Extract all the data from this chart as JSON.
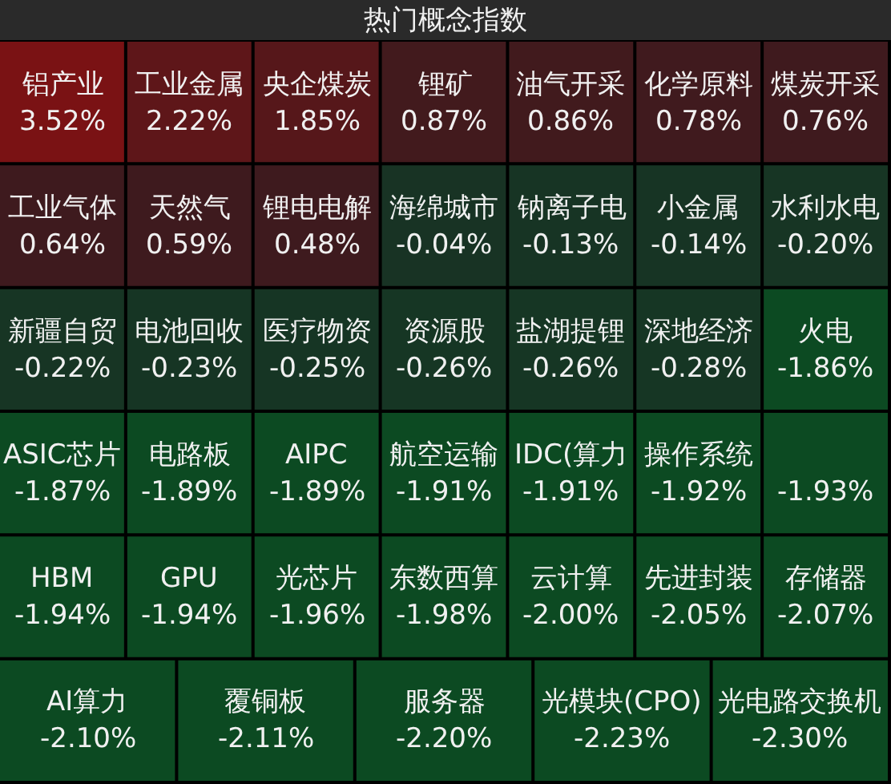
{
  "chart_data": {
    "type": "other",
    "title": "热门概念指数",
    "categories": [
      "铝产业",
      "工业金属",
      "央企煤炭",
      "锂矿",
      "油气开采",
      "化学原料",
      "煤炭开采",
      "工业气体",
      "天然气",
      "锂电电解",
      "海绵城市",
      "钠离子电",
      "小金属",
      "水利水电",
      "新疆自贸",
      "电池回收",
      "医疗物资",
      "资源股",
      "盐湖提锂",
      "深地经济",
      "火电",
      "ASIC芯片",
      "电路板",
      "AIPC",
      "航空运输",
      "IDC(算力",
      "操作系统",
      null,
      "HBM",
      "GPU",
      "光芯片",
      "东数西算",
      "云计算",
      "先进封装",
      "存储器",
      "AI算力",
      "覆铜板",
      "服务器",
      "光模块(CPO)",
      "光电路交换机"
    ],
    "values": [
      3.52,
      2.22,
      1.85,
      0.87,
      0.86,
      0.78,
      0.76,
      0.64,
      0.59,
      0.48,
      -0.04,
      -0.13,
      -0.14,
      -0.2,
      -0.22,
      -0.23,
      -0.25,
      -0.26,
      -0.26,
      -0.28,
      -1.86,
      -1.87,
      -1.89,
      -1.89,
      -1.91,
      -1.91,
      -1.92,
      -1.93,
      -1.94,
      -1.94,
      -1.96,
      -1.98,
      -2.0,
      -2.05,
      -2.07,
      -2.1,
      -2.11,
      -2.2,
      -2.23,
      -2.3
    ],
    "value_labels": [
      "3.52%",
      "2.22%",
      "1.85%",
      "0.87%",
      "0.86%",
      "0.78%",
      "0.76%",
      "0.64%",
      "0.59%",
      "0.48%",
      "-0.04%",
      "-0.13%",
      "-0.14%",
      "-0.20%",
      "-0.22%",
      "-0.23%",
      "-0.25%",
      "-0.26%",
      "-0.26%",
      "-0.28%",
      "-1.86%",
      "-1.87%",
      "-1.89%",
      "-1.89%",
      "-1.91%",
      "-1.91%",
      "-1.92%",
      "-1.93%",
      "-1.94%",
      "-1.94%",
      "-1.96%",
      "-1.98%",
      "-2.00%",
      "-2.05%",
      "-2.07%",
      "-2.10%",
      "-2.11%",
      "-2.20%",
      "-2.23%",
      "-2.30%"
    ]
  }
}
